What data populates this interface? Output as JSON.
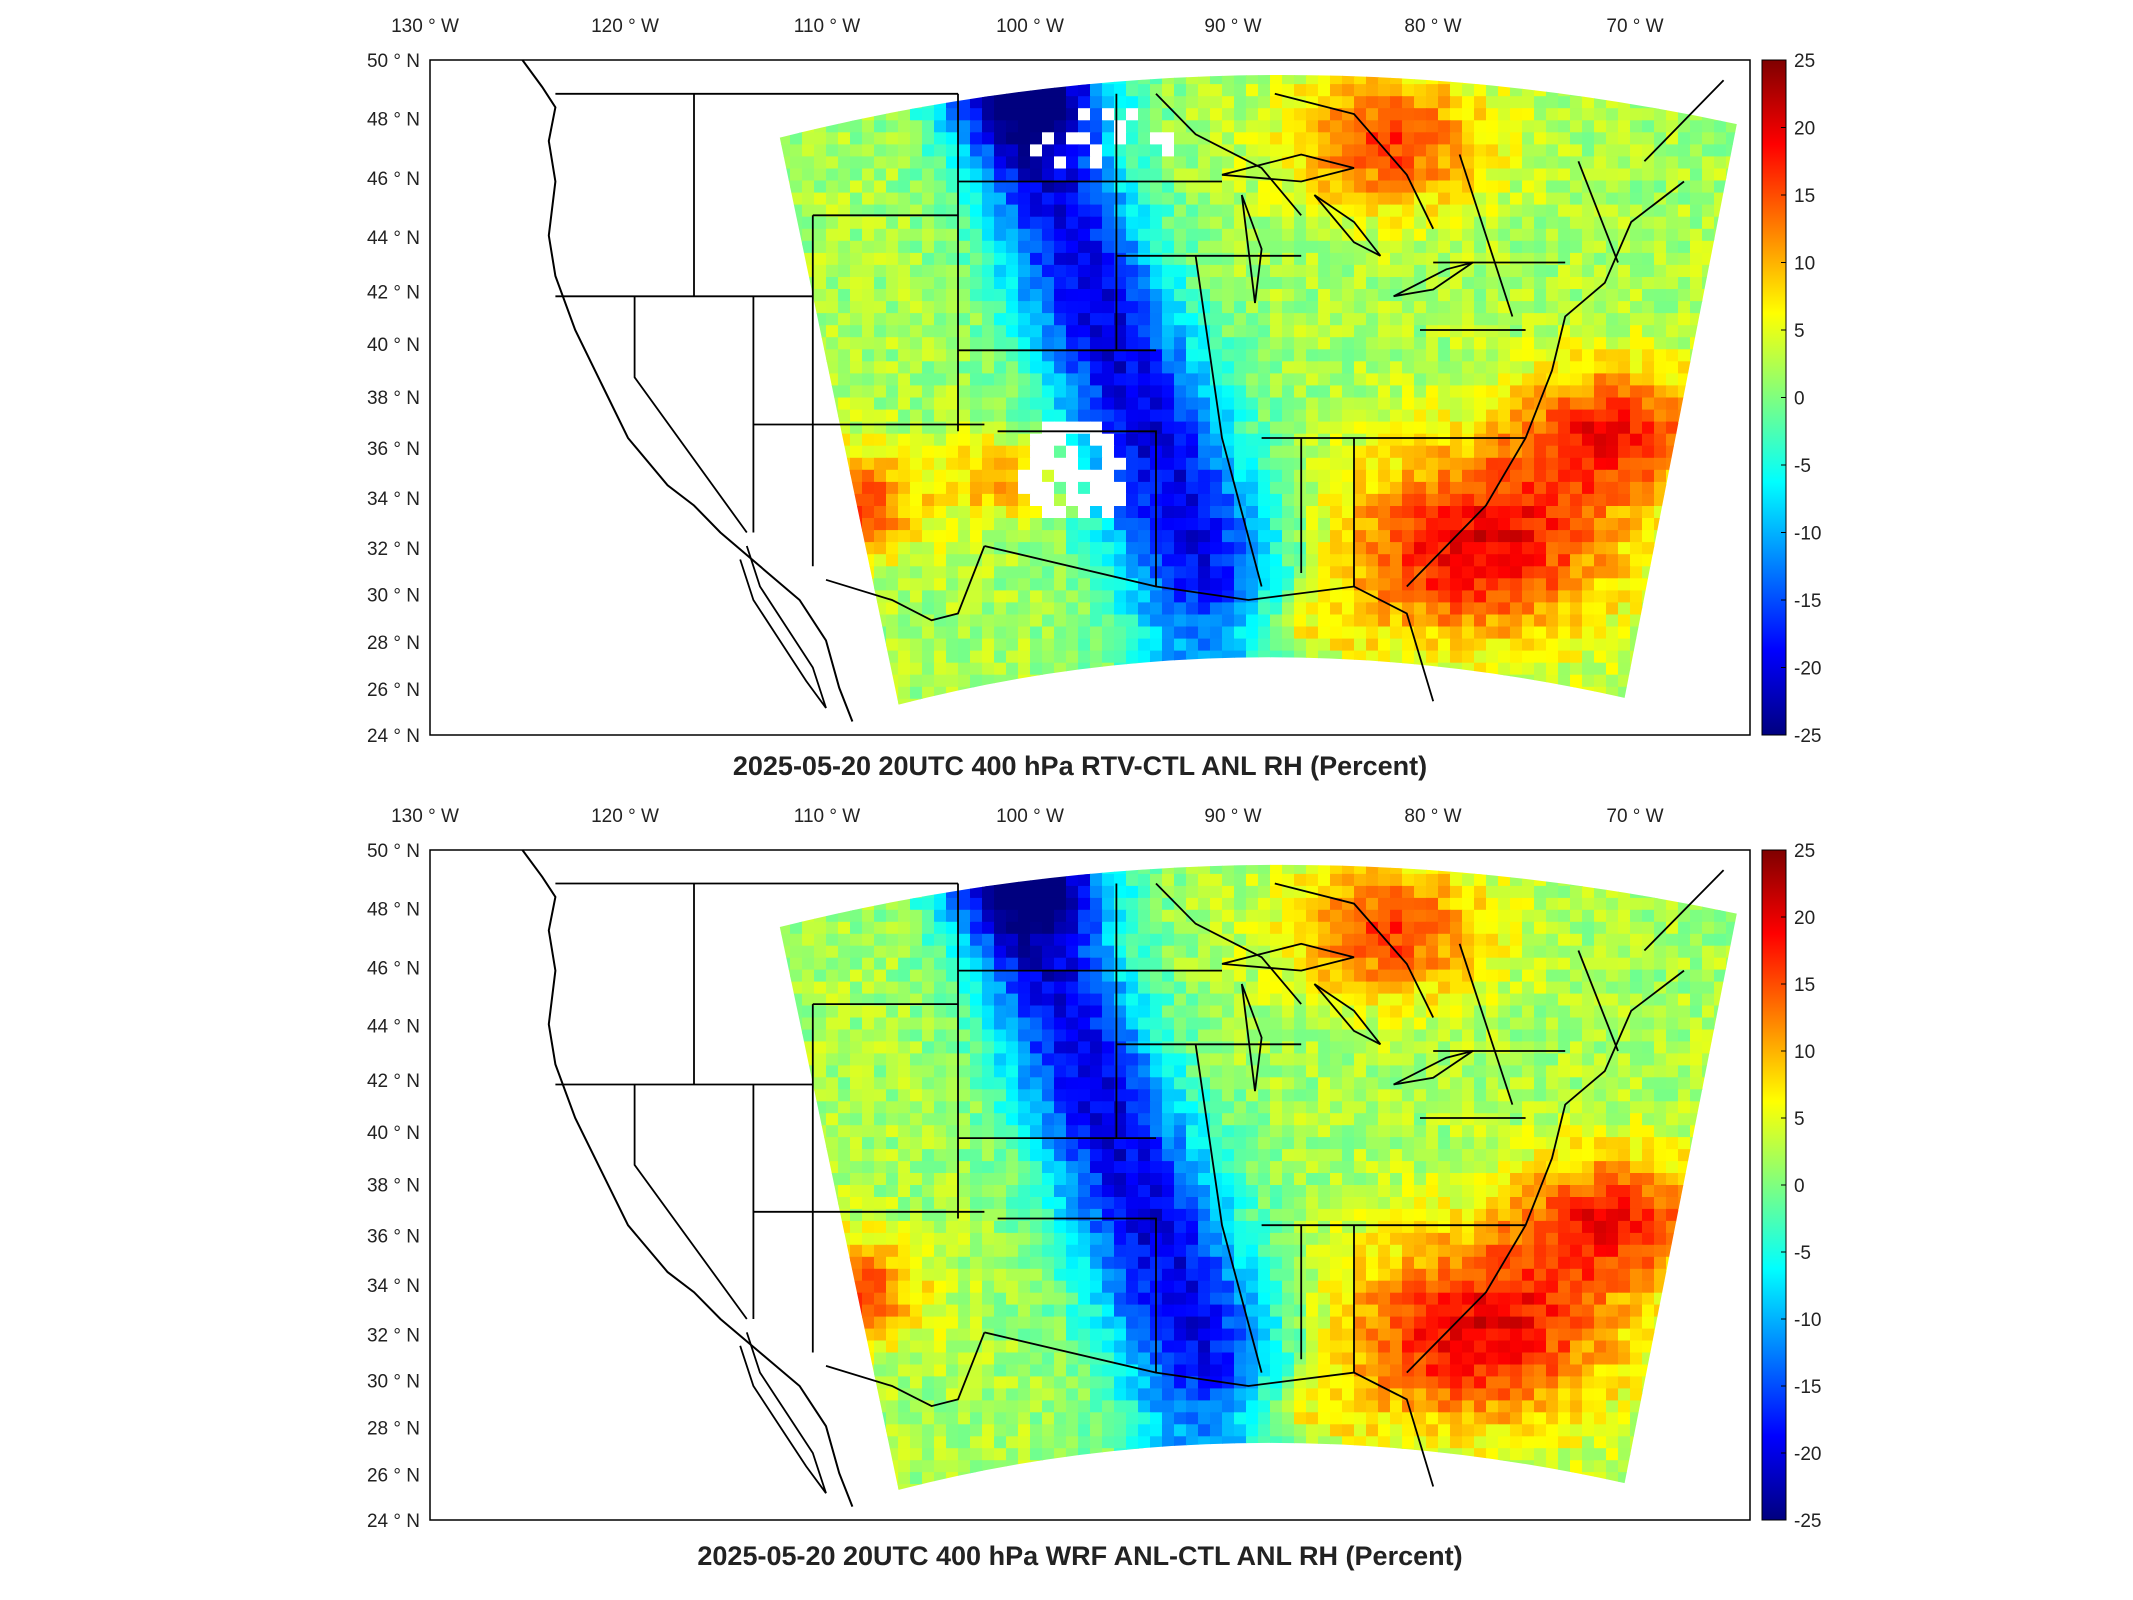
{
  "panels": [
    {
      "title": "2025-05-20 20UTC 400 hPa RTV-CTL ANL RH (Percent)",
      "variant": "rtv"
    },
    {
      "title": "2025-05-20 20UTC 400 hPa WRF ANL-CTL ANL RH (Percent)",
      "variant": "wrf"
    }
  ],
  "axes": {
    "lon_labels": [
      "130",
      "120",
      "110",
      "100",
      "90",
      "80",
      "70"
    ],
    "lon_suffix": "W",
    "lat_labels": [
      "50",
      "48",
      "46",
      "44",
      "42",
      "40",
      "38",
      "36",
      "34",
      "32",
      "30",
      "28",
      "26",
      "24"
    ],
    "lat_suffix": "N",
    "degree_symbol": "°"
  },
  "colorbar": {
    "ticks": [
      "25",
      "20",
      "15",
      "10",
      "5",
      "0",
      "-5",
      "-10",
      "-15",
      "-20",
      "-25"
    ],
    "range": [
      -25,
      25
    ],
    "colormap": [
      "#00007f",
      "#0000ff",
      "#007fff",
      "#00ffff",
      "#7fff7f",
      "#ffff00",
      "#ff7f00",
      "#ff0000",
      "#7f0000"
    ]
  }
}
